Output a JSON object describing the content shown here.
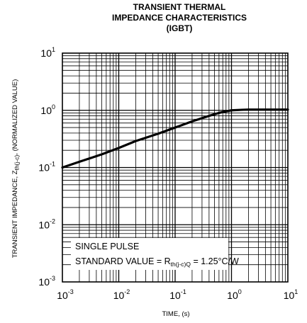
{
  "chart_data": {
    "type": "line",
    "title": [
      "TRANSIENT THERMAL",
      "IMPEDANCE CHARACTERISTICS",
      "(IGBT)"
    ],
    "xlabel": "TIME, (s)",
    "ylabel": {
      "main": "TRANSIENT  IMPEDANCE, Z",
      "sub": "th(j-c)",
      "rest": ", (NORMALIZED VALUE)"
    },
    "x_scale": "log",
    "y_scale": "log",
    "xlim": [
      0.001,
      10
    ],
    "ylim": [
      0.001,
      10
    ],
    "grid": true,
    "x_ticks": [
      {
        "base": "10",
        "exp": "-3"
      },
      {
        "base": "10",
        "exp": "-2"
      },
      {
        "base": "10",
        "exp": "-1"
      },
      {
        "base": "10",
        "exp": "0"
      },
      {
        "base": "10",
        "exp": "1"
      }
    ],
    "y_ticks": [
      {
        "base": "10",
        "exp": "-3"
      },
      {
        "base": "10",
        "exp": "-2"
      },
      {
        "base": "10",
        "exp": "-1"
      },
      {
        "base": "10",
        "exp": "0"
      },
      {
        "base": "10",
        "exp": "1"
      }
    ],
    "series": [
      {
        "x": [
          0.001,
          0.002,
          0.005,
          0.01,
          0.02,
          0.05,
          0.1,
          0.2,
          0.4,
          0.6,
          0.8,
          1.0,
          1.5,
          2,
          5,
          10
        ],
        "y": [
          0.1,
          0.126,
          0.17,
          0.22,
          0.29,
          0.39,
          0.5,
          0.64,
          0.8,
          0.9,
          0.96,
          1.0,
          1.02,
          1.03,
          1.03,
          1.03
        ]
      }
    ],
    "annotation": {
      "line1": "SINGLE PULSE",
      "line2_prefix": "STANDARD VALUE = R",
      "line2_sub": "th(j-c)Q",
      "line2_suffix": " = 1.25°C/W"
    },
    "colors": {
      "curve": "#000000",
      "grid": "#000000",
      "background": "#ffffff"
    }
  }
}
